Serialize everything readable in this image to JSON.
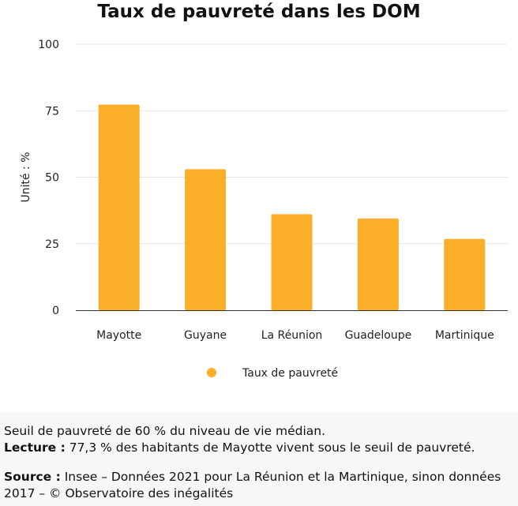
{
  "colors": {
    "bar": "#FBAE28",
    "grid": "#e6e6e6",
    "axis": "#333333"
  },
  "chart_data": {
    "type": "bar",
    "title": "Taux de pauvreté dans les DOM",
    "categories": [
      "Mayotte",
      "Guyane",
      "La Réunion",
      "Guadeloupe",
      "Martinique"
    ],
    "series": [
      {
        "name": "Taux de pauvreté",
        "values": [
          77.3,
          53.0,
          36.1,
          34.5,
          26.8
        ]
      }
    ],
    "ylabel": "Unité : %",
    "xlabel": "",
    "ylim": [
      0,
      100
    ],
    "yticks": [
      0,
      25,
      50,
      75,
      100
    ],
    "grid": true,
    "legend_position": "bottom-center"
  },
  "footer": {
    "line1": "Seuil de pauvreté de 60 % du niveau de vie médian.",
    "lecture_label": "Lecture :",
    "lecture_text": " 77,3 % des habitants de Mayotte vivent sous le seuil de pauvreté.",
    "source_label": "Source :",
    "source_text": " Insee – Données 2021 pour La Réunion et la Martinique, sinon données 2017 – © Observatoire des inégalités"
  }
}
